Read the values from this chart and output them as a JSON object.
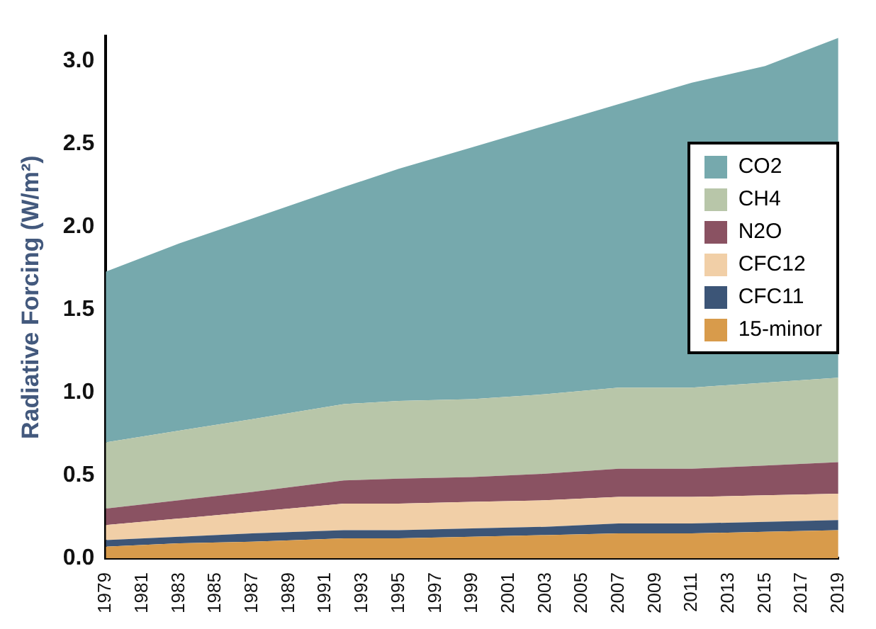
{
  "chart_data": {
    "type": "area",
    "ylabel": "Radiative Forcing (W/m²)",
    "stacked": true,
    "legend": "right",
    "x": [
      1979,
      1983,
      1987,
      1992,
      1995,
      1999,
      2003,
      2007,
      2011,
      2015,
      2019
    ],
    "xlim": [
      1979,
      2019
    ],
    "xticks": [
      1979,
      1981,
      1983,
      1985,
      1987,
      1989,
      1991,
      1993,
      1995,
      1997,
      1999,
      2001,
      2003,
      2005,
      2007,
      2009,
      2011,
      2013,
      2015,
      2017,
      2019
    ],
    "ylim": [
      0,
      3.15
    ],
    "yticks": [
      {
        "value": 0,
        "label": "0.0"
      },
      {
        "value": 0.5,
        "label": "0.5"
      },
      {
        "value": 1,
        "label": "1.0"
      },
      {
        "value": 1.5,
        "label": "1.5"
      },
      {
        "value": 2,
        "label": "2.0"
      },
      {
        "value": 2.5,
        "label": "2.5"
      },
      {
        "value": 3,
        "label": "3.0"
      }
    ],
    "series": [
      {
        "name": "15-minor",
        "color": "#d89b4b",
        "values": [
          0.07,
          0.09,
          0.1,
          0.12,
          0.12,
          0.13,
          0.14,
          0.15,
          0.15,
          0.16,
          0.17
        ]
      },
      {
        "name": "CFC11",
        "color": "#3c5577",
        "values": [
          0.04,
          0.04,
          0.05,
          0.05,
          0.05,
          0.05,
          0.05,
          0.06,
          0.06,
          0.06,
          0.06
        ]
      },
      {
        "name": "CFC12",
        "color": "#f1cfa7",
        "values": [
          0.09,
          0.11,
          0.13,
          0.16,
          0.16,
          0.16,
          0.16,
          0.16,
          0.16,
          0.16,
          0.16
        ]
      },
      {
        "name": "N2O",
        "color": "#8a5262",
        "values": [
          0.1,
          0.11,
          0.12,
          0.14,
          0.15,
          0.15,
          0.16,
          0.17,
          0.17,
          0.18,
          0.19
        ]
      },
      {
        "name": "CH4",
        "color": "#b8c6a9",
        "values": [
          0.4,
          0.42,
          0.44,
          0.46,
          0.47,
          0.47,
          0.48,
          0.49,
          0.49,
          0.5,
          0.51
        ]
      },
      {
        "name": "CO2",
        "color": "#76a9ad",
        "values": [
          1.03,
          1.13,
          1.21,
          1.31,
          1.4,
          1.52,
          1.62,
          1.71,
          1.84,
          1.91,
          2.05
        ]
      }
    ]
  }
}
